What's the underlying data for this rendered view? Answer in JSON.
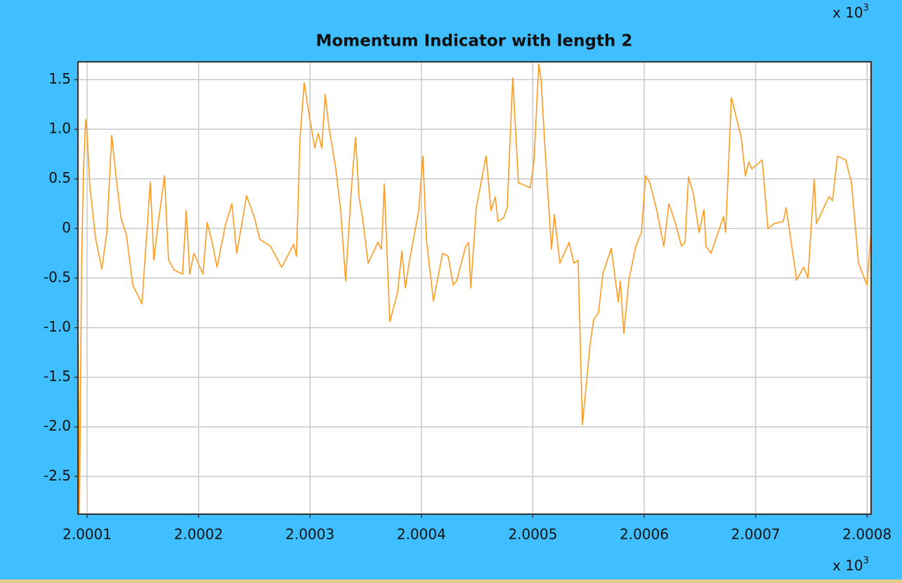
{
  "chart_data": {
    "type": "line",
    "title": "Momentum Indicator with length 2",
    "color": "#ff9a1f",
    "grid": true,
    "y_multiplier": "x 10",
    "y_multiplier_exponent": "3",
    "x_multiplier": "x 10",
    "x_multiplier_exponent": "3",
    "xlim": [
      2.0000918,
      2.0008036
    ],
    "xticks": [
      2.0001,
      2.0002,
      2.0003,
      2.0004,
      2.0005,
      2.0006,
      2.0007,
      2.0008
    ],
    "ylim": [
      -2.88,
      1.68
    ],
    "yticks": [
      1.5,
      {
        "value": 1,
        "label": "1.0"
      },
      0.5,
      0,
      -0.5,
      {
        "value": -1,
        "label": "-1.0"
      },
      -1.5,
      {
        "value": -2,
        "label": "-2.0"
      },
      -2.5
    ],
    "x": [
      2.0000918,
      2.0000931,
      2.0000937,
      2.000095,
      2.0000968,
      2.0000987,
      2.0001,
      2.0001025,
      2.0001076,
      2.0001132,
      2.0001177,
      2.0001221,
      2.0001259,
      2.0001303,
      2.0001353,
      2.000141,
      2.0001492,
      2.000153,
      2.0001567,
      2.0001599,
      2.0001637,
      2.0001694,
      2.0001731,
      2.0001782,
      2.0001857,
      2.0001889,
      2.0001921,
      2.0001958,
      2.000204,
      2.0002078,
      2.0002122,
      2.0002166,
      2.0002242,
      2.0002299,
      2.0002343,
      2.0002431,
      2.0002501,
      2.0002551,
      2.0002646,
      2.0002746,
      2.0002854,
      2.0002879,
      2.000291,
      2.0002948,
      2.0002999,
      2.0003043,
      2.0003074,
      2.0003106,
      2.0003137,
      2.0003169,
      2.0003232,
      2.0003276,
      2.000332,
      2.0003371,
      2.0003409,
      2.000344,
      2.0003472,
      2.0003522,
      2.000361,
      2.0003642,
      2.0003667,
      2.0003717,
      2.0003787,
      2.0003825,
      2.0003856,
      2.0003894,
      2.0003976,
      2.0004014,
      2.0004045,
      2.0004108,
      2.000419,
      2.0004241,
      2.0004285,
      2.0004316,
      2.0004398,
      2.0004424,
      2.0004443,
      2.0004493,
      2.0004581,
      2.0004625,
      2.0004663,
      2.0004688,
      2.0004739,
      2.000477,
      2.000482,
      2.0004871,
      2.0004978,
      2.000501,
      2.0005054,
      2.0005073,
      2.0005105,
      2.0005168,
      2.0005193,
      2.0005243,
      2.0005325,
      2.0005369,
      2.0005407,
      2.0005445,
      2.0005514,
      2.0005546,
      2.000559,
      2.0005628,
      2.0005704,
      2.0005767,
      2.0005785,
      2.0005817,
      2.0005861,
      2.0005924,
      2.0005975,
      2.0006012,
      2.000605,
      2.0006113,
      2.0006176,
      2.0006221,
      2.0006284,
      2.0006334,
      2.0006366,
      2.0006397,
      2.0006441,
      2.0006492,
      2.0006536,
      2.0006555,
      2.0006599,
      2.0006712,
      2.0006731,
      2.0006782,
      2.000687,
      2.0006908,
      2.0006939,
      2.0006965,
      2.0007059,
      2.000711,
      2.0007166,
      2.0007248,
      2.0007274,
      2.0007368,
      2.0007431,
      2.0007469,
      2.0007526,
      2.0007545,
      2.0007658,
      2.000769,
      2.0007734,
      2.0007809,
      2.000786,
      2.0007923,
      2.0007999,
      2.0008036
    ],
    "values": [
      -0.74,
      -2.87,
      -2.16,
      -0.39,
      0.6,
      1.1,
      0.96,
      0.42,
      -0.1,
      -0.41,
      -0.04,
      0.94,
      0.53,
      0.11,
      -0.07,
      -0.57,
      -0.76,
      -0.14,
      0.47,
      -0.32,
      0.04,
      0.53,
      -0.32,
      -0.42,
      -0.46,
      0.18,
      -0.46,
      -0.25,
      -0.46,
      0.06,
      -0.14,
      -0.39,
      0.04,
      0.25,
      -0.25,
      0.33,
      0.11,
      -0.11,
      -0.18,
      -0.39,
      -0.16,
      -0.28,
      0.89,
      1.47,
      1.1,
      0.81,
      0.96,
      0.81,
      1.35,
      1.03,
      0.6,
      0.18,
      -0.53,
      0.39,
      0.92,
      0.32,
      0.11,
      -0.35,
      -0.14,
      -0.21,
      0.45,
      -0.94,
      -0.64,
      -0.23,
      -0.6,
      -0.32,
      0.18,
      0.73,
      -0.11,
      -0.73,
      -0.25,
      -0.28,
      -0.57,
      -0.53,
      -0.18,
      -0.14,
      -0.6,
      0.21,
      0.73,
      0.18,
      0.32,
      0.07,
      0.11,
      0.21,
      1.52,
      0.46,
      0.41,
      0.67,
      1.66,
      1.52,
      0.89,
      -0.21,
      0.14,
      -0.35,
      -0.14,
      -0.35,
      -0.32,
      -1.98,
      -1.17,
      -0.92,
      -0.85,
      -0.46,
      -0.2,
      -0.74,
      -0.53,
      -1.06,
      -0.53,
      -0.18,
      -0.04,
      0.53,
      0.46,
      0.18,
      -0.18,
      0.25,
      0.04,
      -0.18,
      -0.14,
      0.52,
      0.35,
      -0.04,
      0.19,
      -0.18,
      -0.25,
      0.12,
      -0.04,
      1.32,
      0.92,
      0.53,
      0.67,
      0.6,
      0.69,
      0,
      0.05,
      0.07,
      0.21,
      -0.52,
      -0.39,
      -0.5,
      0.5,
      0.05,
      0.32,
      0.28,
      0.73,
      0.69,
      0.46,
      -0.35,
      -0.57,
      -0.04
    ]
  }
}
